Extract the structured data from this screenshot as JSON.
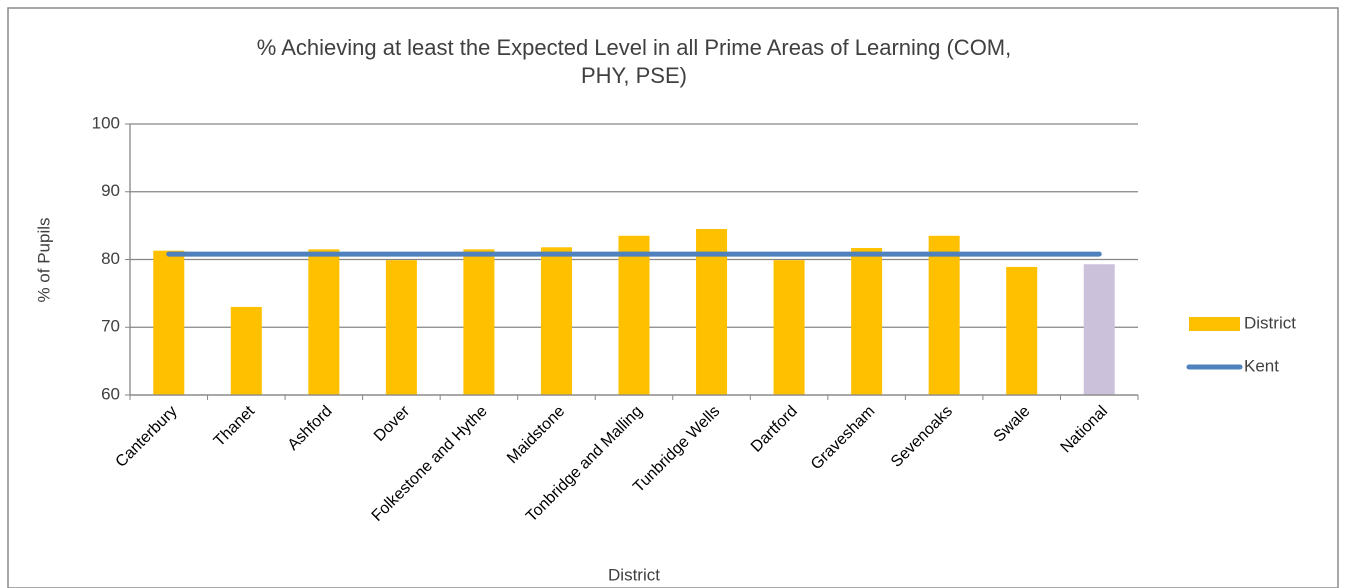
{
  "chart_data": {
    "type": "bar",
    "title": [
      "% Achieving at least the Expected Level in all Prime Areas of Learning (COM,",
      "PHY, PSE)"
    ],
    "x_label": "District",
    "y_label": "% of Pupils",
    "categories": [
      "Canterbury",
      "Thanet",
      "Ashford",
      "Dover",
      "Folkestone and Hythe",
      "Maidstone",
      "Tonbridge and Malling",
      "Tunbridge Wells",
      "Dartford",
      "Gravesham",
      "Sevenoaks",
      "Swale",
      "National"
    ],
    "series": [
      {
        "name": "District",
        "type": "bar",
        "color": "#ffc000",
        "point_colors": [
          "#ffc000",
          "#ffc000",
          "#ffc000",
          "#ffc000",
          "#ffc000",
          "#ffc000",
          "#ffc000",
          "#ffc000",
          "#ffc000",
          "#ffc000",
          "#ffc000",
          "#ffc000",
          "#ccc1da"
        ],
        "values": [
          81.3,
          73.0,
          81.5,
          79.9,
          81.5,
          81.8,
          83.5,
          84.5,
          79.9,
          81.7,
          83.5,
          78.9,
          79.3
        ]
      },
      {
        "name": "Kent",
        "type": "line",
        "color": "#4f81bd",
        "values": [
          80.8,
          80.8,
          80.8,
          80.8,
          80.8,
          80.8,
          80.8,
          80.8,
          80.8,
          80.8,
          80.8,
          80.8,
          80.8
        ]
      }
    ],
    "ylim": [
      60,
      100
    ],
    "yticks": [
      60,
      70,
      80,
      90,
      100
    ],
    "grid": true,
    "legend": "right"
  }
}
